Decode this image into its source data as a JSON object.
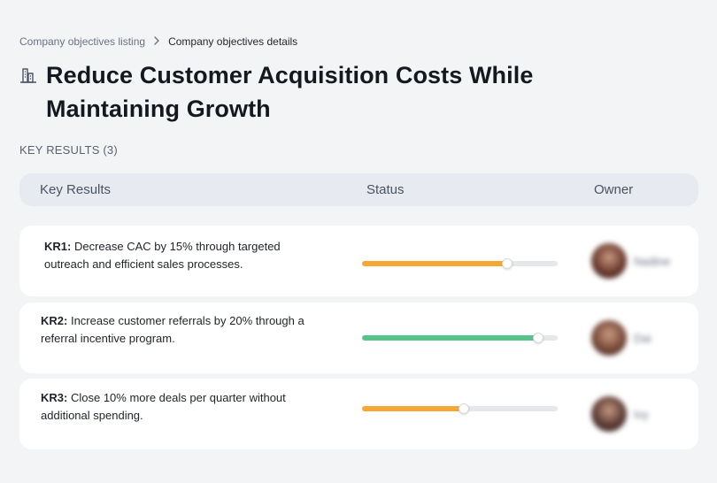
{
  "breadcrumb": {
    "parent": "Company objectives listing",
    "current": "Company objectives details"
  },
  "objective": {
    "icon": "building-chart-icon",
    "title": "Reduce Customer Acquisition Costs While Maintaining Growth"
  },
  "section_label": "KEY RESULTS (3)",
  "table": {
    "headers": {
      "key_results": "Key Results",
      "status": "Status",
      "owner": "Owner"
    }
  },
  "key_results": [
    {
      "code": "KR1:",
      "text": "Decrease CAC by 15% through targeted outreach and efficient sales processes.",
      "progress": 0.74,
      "color": "#f7a833",
      "owner_name": "Nadine",
      "avatar_color": "#6b3a2e"
    },
    {
      "code": "KR2:",
      "text": "Increase customer referrals by 20% through a referral incentive program.",
      "progress": 0.9,
      "color": "#57c48a",
      "owner_name": "Dai",
      "avatar_color": "#7a4a3a"
    },
    {
      "code": "KR3:",
      "text": "Close 10% more deals per quarter without additional spending.",
      "progress": 0.52,
      "color": "#f7a833",
      "owner_name": "Ivy",
      "avatar_color": "#5a3a34"
    }
  ]
}
